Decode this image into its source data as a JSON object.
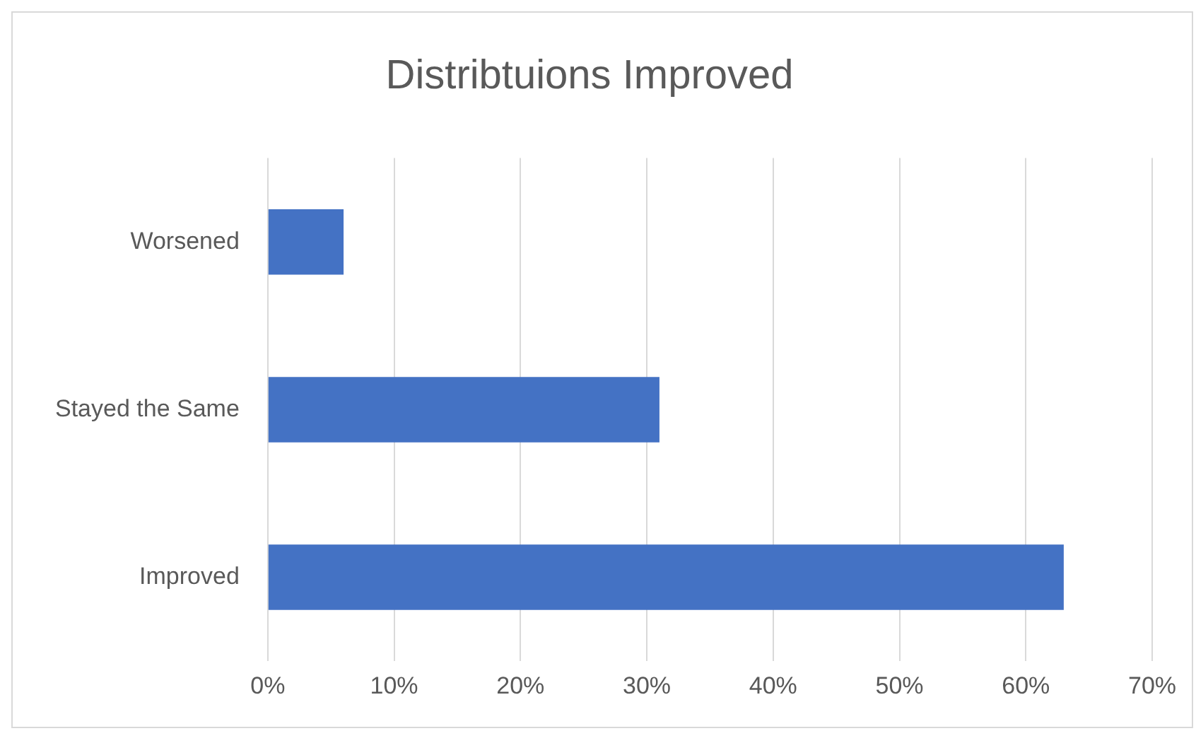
{
  "chart_data": {
    "type": "bar",
    "orientation": "horizontal",
    "title": "Distribtuions Improved",
    "categories": [
      "Worsened",
      "Stayed the Same",
      "Improved"
    ],
    "values": [
      6,
      31,
      63
    ],
    "color": "#4472c4",
    "xlim": [
      0,
      70
    ],
    "xticks": [
      {
        "value": 0,
        "label": "0%"
      },
      {
        "value": 10,
        "label": "10%"
      },
      {
        "value": 20,
        "label": "20%"
      },
      {
        "value": 30,
        "label": "30%"
      },
      {
        "value": 40,
        "label": "40%"
      },
      {
        "value": 50,
        "label": "50%"
      },
      {
        "value": 60,
        "label": "60%"
      },
      {
        "value": 70,
        "label": "70%"
      }
    ],
    "grid": "x"
  }
}
